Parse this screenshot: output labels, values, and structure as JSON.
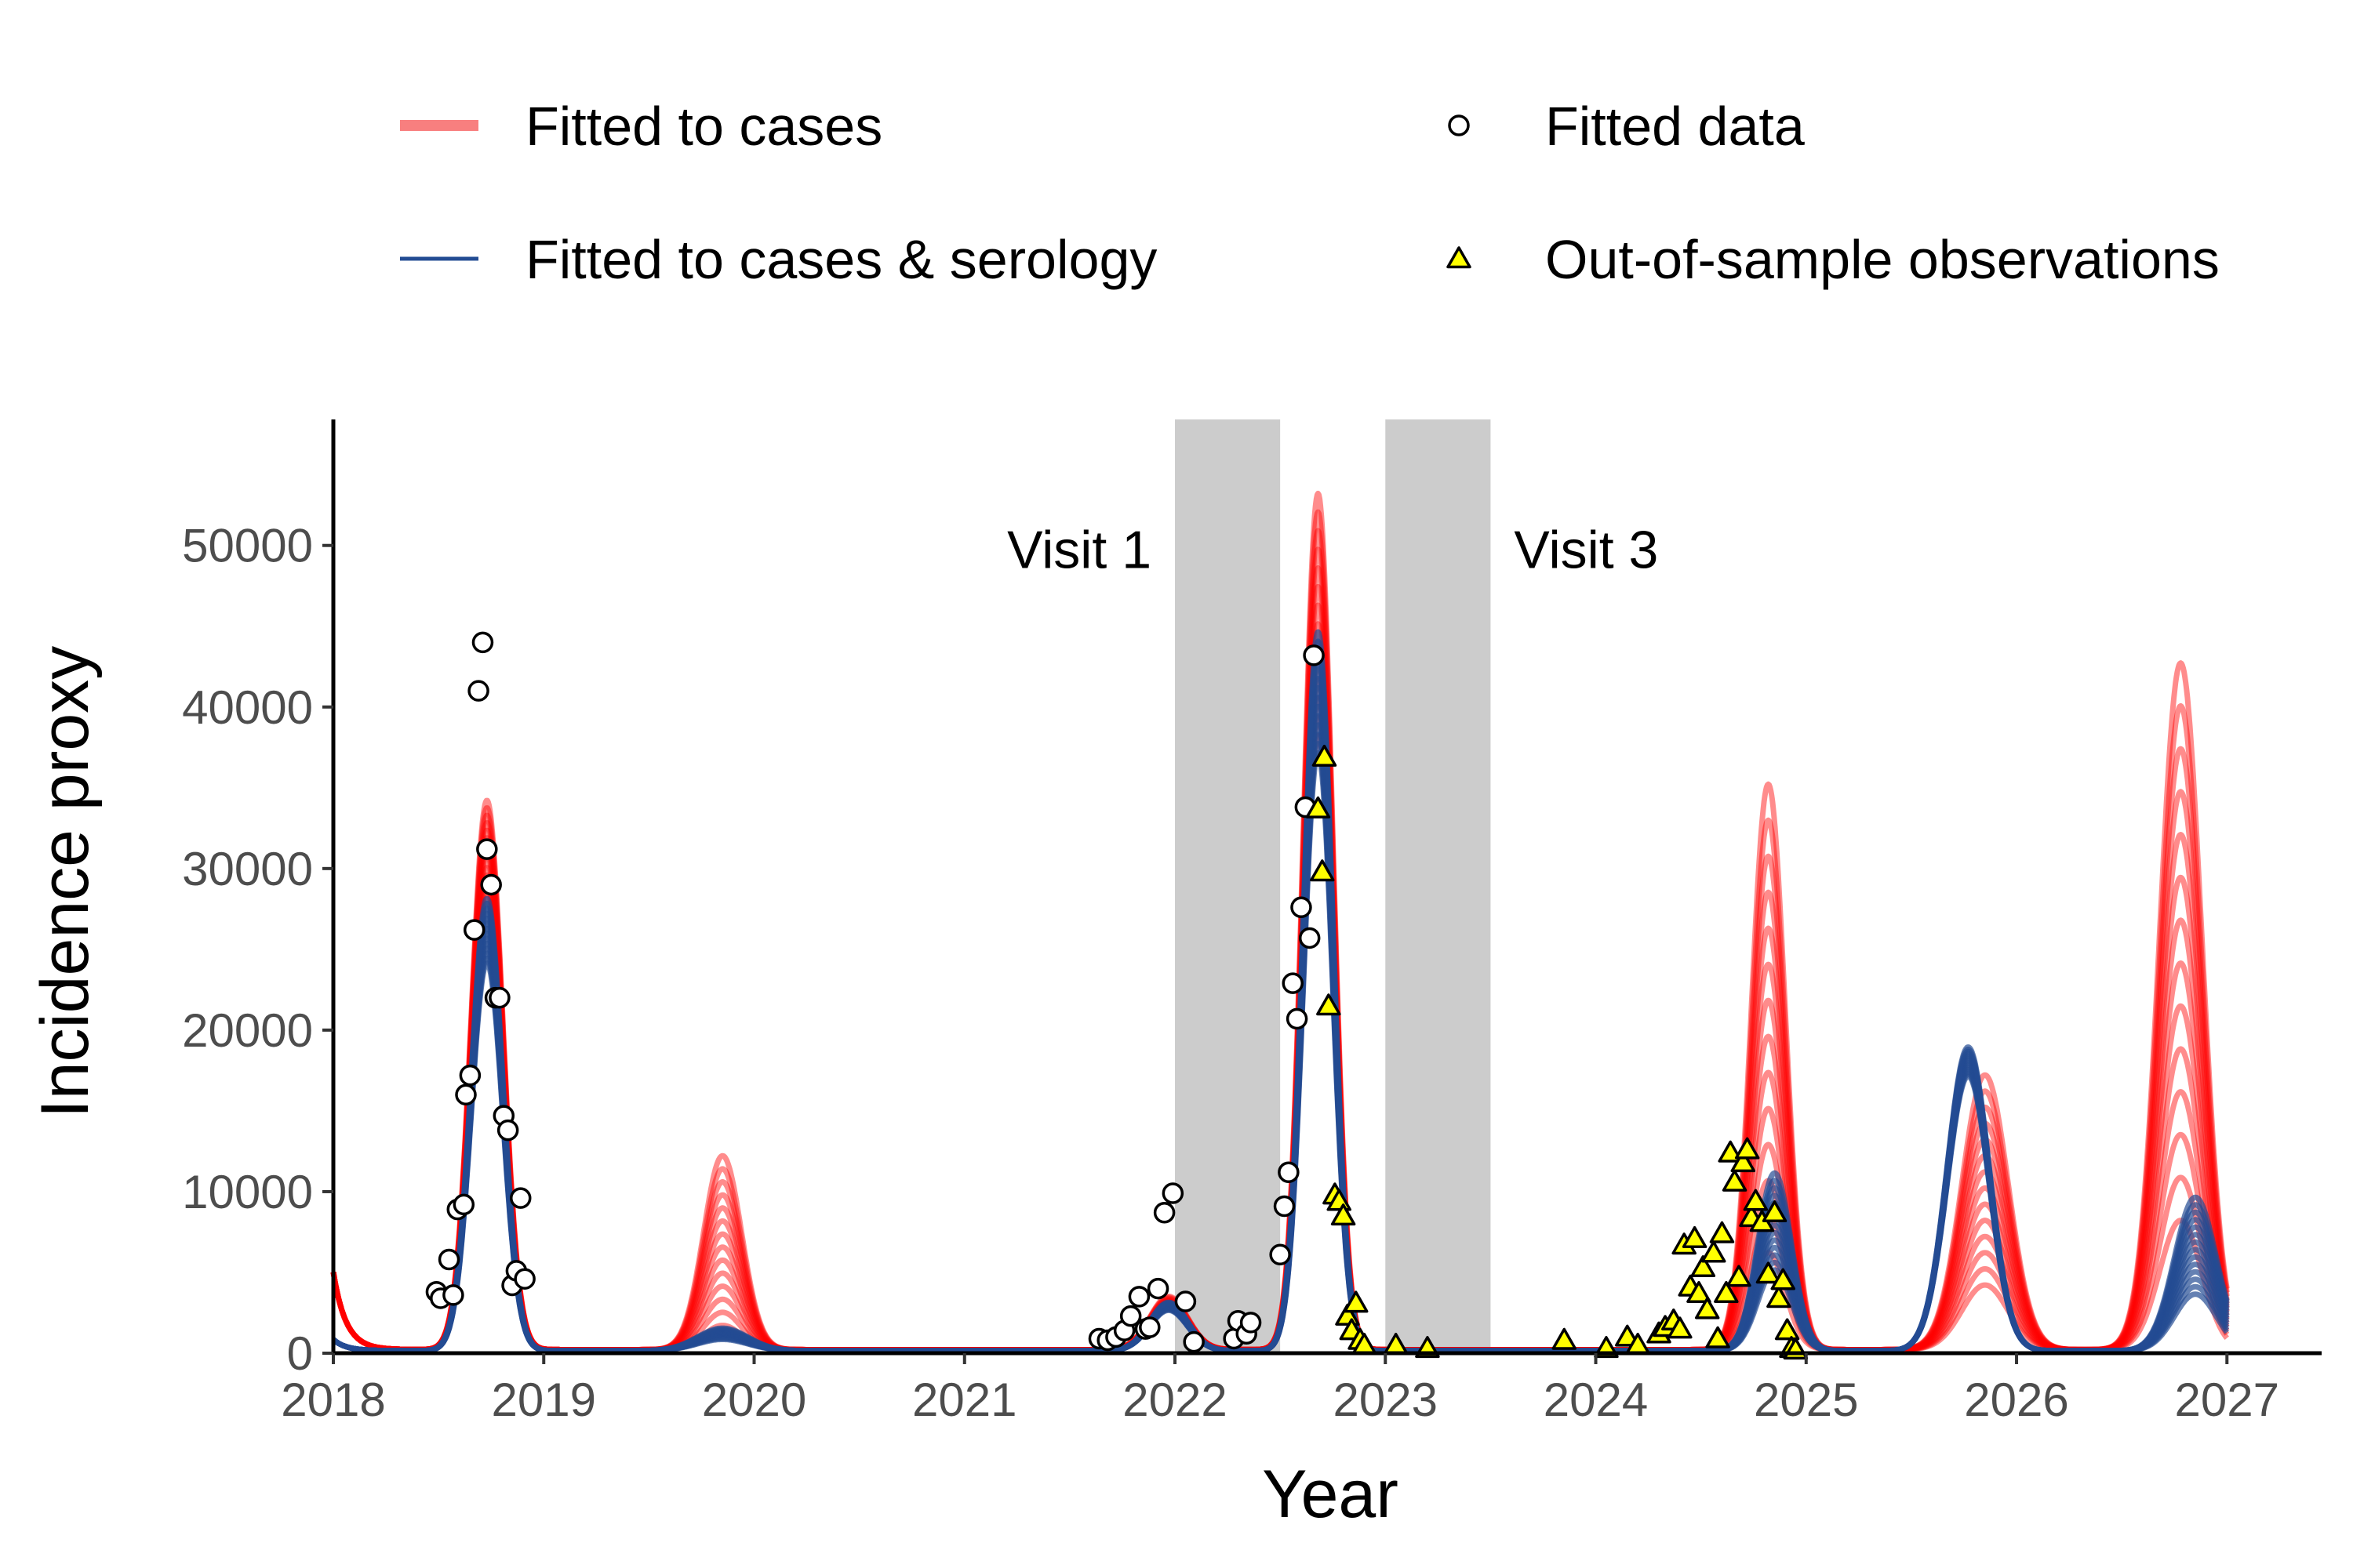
{
  "chart_data": {
    "type": "line",
    "xlabel": "Year",
    "ylabel": "Incidence proxy",
    "xlim": [
      2018,
      2027.45
    ],
    "ylim": [
      0,
      57800
    ],
    "x_ticks": [
      2018,
      2019,
      2020,
      2021,
      2022,
      2023,
      2024,
      2025,
      2026,
      2027
    ],
    "y_ticks": [
      0,
      10000,
      20000,
      30000,
      40000,
      50000
    ],
    "grid": false,
    "legend_position": "top",
    "legend": [
      {
        "label": "Fitted to cases",
        "symbol": "thick-line",
        "color": "#f87f7f"
      },
      {
        "label": "Fitted to cases & serology",
        "symbol": "line",
        "color": "#234c93"
      },
      {
        "label": "Fitted data",
        "symbol": "circle",
        "color": "#ffffff"
      },
      {
        "label": "Out-of-sample observations",
        "symbol": "triangle",
        "color": "#ffff00"
      }
    ],
    "shaded_regions": [
      {
        "x0": 2022.0,
        "x1": 2022.5,
        "label": "Visit 1",
        "label_side": "left",
        "color": "#cccccc"
      },
      {
        "x0": 2023.0,
        "x1": 2023.5,
        "label": "Visit 3",
        "label_side": "right",
        "color": "#cccccc"
      }
    ],
    "series": [
      {
        "name": "Fitted to cases",
        "color": "#ff0000",
        "baseline": 220,
        "start": [
          2018.0,
          4800
        ],
        "peaks": [
          {
            "center": 2018.73,
            "width": 0.075,
            "min": 28000,
            "max": 34000
          },
          {
            "center": 2019.85,
            "width": 0.09,
            "min": 1500,
            "max": 12000
          },
          {
            "center": 2021.97,
            "width": 0.09,
            "min": 2500,
            "max": 3300
          },
          {
            "center": 2022.68,
            "width": 0.07,
            "min": 38000,
            "max": 53000
          },
          {
            "center": 2024.82,
            "width": 0.08,
            "min": 6000,
            "max": 35000
          },
          {
            "center": 2025.85,
            "width": 0.11,
            "min": 4000,
            "max": 17000
          },
          {
            "center": 2026.78,
            "width": 0.1,
            "min": 8000,
            "max": 42500
          }
        ]
      },
      {
        "name": "Fitted to cases & serology",
        "color": "#234c93",
        "baseline": 150,
        "start": [
          2018.0,
          700
        ],
        "peaks": [
          {
            "center": 2018.73,
            "width": 0.075,
            "min": 24000,
            "max": 28000
          },
          {
            "center": 2019.85,
            "width": 0.12,
            "min": 700,
            "max": 1400
          },
          {
            "center": 2021.97,
            "width": 0.09,
            "min": 2500,
            "max": 3000
          },
          {
            "center": 2022.68,
            "width": 0.07,
            "min": 37000,
            "max": 44500
          },
          {
            "center": 2024.85,
            "width": 0.08,
            "min": 5000,
            "max": 11000
          },
          {
            "center": 2025.77,
            "width": 0.1,
            "min": 17000,
            "max": 18800
          },
          {
            "center": 2026.85,
            "width": 0.1,
            "min": 3500,
            "max": 9500
          }
        ]
      }
    ],
    "fitted_data": {
      "name": "Fitted data",
      "points": [
        [
          2018.49,
          3800
        ],
        [
          2018.51,
          3400
        ],
        [
          2018.55,
          5800
        ],
        [
          2018.57,
          3600
        ],
        [
          2018.59,
          8900
        ],
        [
          2018.62,
          9200
        ],
        [
          2018.63,
          16000
        ],
        [
          2018.65,
          17200
        ],
        [
          2018.67,
          26200
        ],
        [
          2018.69,
          41000
        ],
        [
          2018.71,
          44000
        ],
        [
          2018.73,
          31200
        ],
        [
          2018.75,
          29000
        ],
        [
          2018.77,
          22000
        ],
        [
          2018.79,
          22000
        ],
        [
          2018.81,
          14700
        ],
        [
          2018.83,
          13800
        ],
        [
          2018.85,
          4200
        ],
        [
          2018.87,
          5100
        ],
        [
          2018.89,
          9600
        ],
        [
          2018.91,
          4600
        ],
        [
          2021.64,
          900
        ],
        [
          2021.68,
          800
        ],
        [
          2021.72,
          1000
        ],
        [
          2021.76,
          1400
        ],
        [
          2021.79,
          2300
        ],
        [
          2021.83,
          3500
        ],
        [
          2021.86,
          1500
        ],
        [
          2021.88,
          1600
        ],
        [
          2021.92,
          4000
        ],
        [
          2021.95,
          8700
        ],
        [
          2021.99,
          9900
        ],
        [
          2022.05,
          3200
        ],
        [
          2022.09,
          700
        ],
        [
          2022.28,
          900
        ],
        [
          2022.3,
          2000
        ],
        [
          2022.34,
          1200
        ],
        [
          2022.36,
          1900
        ],
        [
          2022.5,
          6100
        ],
        [
          2022.52,
          9100
        ],
        [
          2022.54,
          11200
        ],
        [
          2022.56,
          22900
        ],
        [
          2022.58,
          20700
        ],
        [
          2022.6,
          27600
        ],
        [
          2022.62,
          33800
        ],
        [
          2022.64,
          25700
        ],
        [
          2022.66,
          43200
        ]
      ]
    },
    "out_of_sample": {
      "name": "Out-of-sample observations",
      "points": [
        [
          2022.68,
          33700
        ],
        [
          2022.7,
          29800
        ],
        [
          2022.71,
          36900
        ],
        [
          2022.73,
          21500
        ],
        [
          2022.76,
          9800
        ],
        [
          2022.78,
          9400
        ],
        [
          2022.8,
          8500
        ],
        [
          2022.82,
          2300
        ],
        [
          2022.84,
          1400
        ],
        [
          2022.86,
          3100
        ],
        [
          2022.88,
          800
        ],
        [
          2022.9,
          500
        ],
        [
          2023.05,
          500
        ],
        [
          2023.2,
          300
        ],
        [
          2023.85,
          800
        ],
        [
          2024.05,
          300
        ],
        [
          2024.15,
          1000
        ],
        [
          2024.2,
          500
        ],
        [
          2024.3,
          1200
        ],
        [
          2024.33,
          1600
        ],
        [
          2024.37,
          2000
        ],
        [
          2024.4,
          1500
        ],
        [
          2024.42,
          6700
        ],
        [
          2024.45,
          4100
        ],
        [
          2024.47,
          7100
        ],
        [
          2024.49,
          3700
        ],
        [
          2024.51,
          5300
        ],
        [
          2024.53,
          2700
        ],
        [
          2024.56,
          6200
        ],
        [
          2024.58,
          900
        ],
        [
          2024.6,
          7400
        ],
        [
          2024.62,
          3700
        ],
        [
          2024.64,
          12400
        ],
        [
          2024.66,
          10600
        ],
        [
          2024.68,
          4700
        ],
        [
          2024.7,
          11800
        ],
        [
          2024.72,
          12600
        ],
        [
          2024.74,
          8400
        ],
        [
          2024.76,
          9400
        ],
        [
          2024.79,
          8100
        ],
        [
          2024.82,
          4900
        ],
        [
          2024.85,
          8700
        ],
        [
          2024.87,
          3400
        ],
        [
          2024.89,
          4500
        ],
        [
          2024.91,
          1400
        ],
        [
          2024.93,
          300
        ],
        [
          2024.95,
          200
        ]
      ]
    }
  }
}
